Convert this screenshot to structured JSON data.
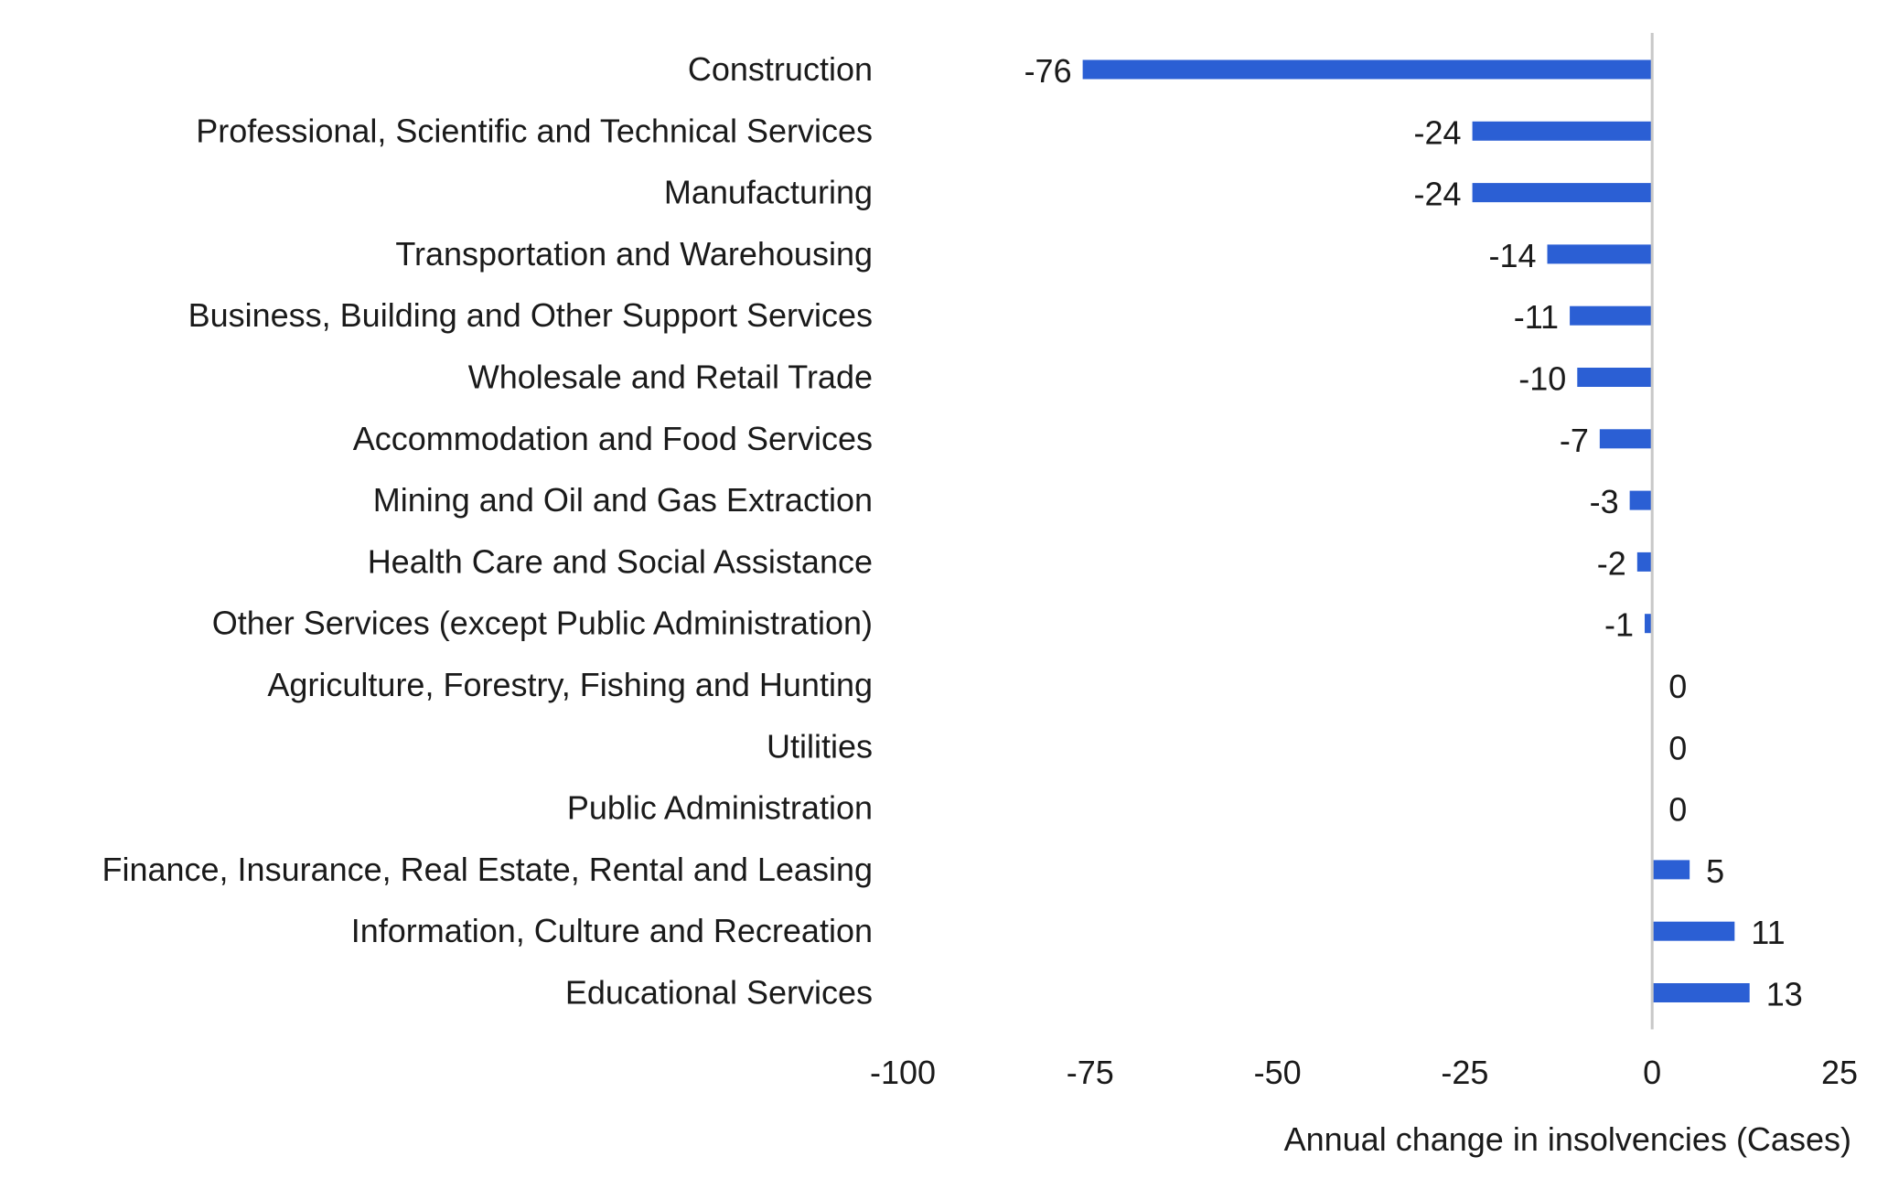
{
  "chart_data": {
    "type": "bar",
    "orientation": "horizontal",
    "categories": [
      "Construction",
      "Professional, Scientific and Technical Services",
      "Manufacturing",
      "Transportation and Warehousing",
      "Business, Building and Other Support Services",
      "Wholesale and Retail Trade",
      "Accommodation and Food Services",
      "Mining and Oil and Gas Extraction",
      "Health Care and Social Assistance",
      "Other Services (except Public Administration)",
      "Agriculture, Forestry, Fishing and Hunting",
      "Utilities",
      "Public Administration",
      "Finance, Insurance, Real Estate, Rental and Leasing",
      "Information, Culture and Recreation",
      "Educational Services"
    ],
    "values": [
      -76,
      -24,
      -24,
      -14,
      -11,
      -10,
      -7,
      -3,
      -2,
      -1,
      0,
      0,
      0,
      5,
      11,
      13
    ],
    "data_labels": [
      "-76",
      "-24",
      "-24",
      "-14",
      "-11",
      "-10",
      "-7",
      "-3",
      "-2",
      "-1",
      "0",
      "0",
      "0",
      "5",
      "11",
      "13"
    ],
    "xlabel": "Annual change in insolvencies (Cases)",
    "ylabel": "",
    "title": "",
    "xlim": [
      -100,
      25
    ],
    "xticks": [
      -100,
      -75,
      -50,
      -25,
      0,
      25
    ],
    "xtick_labels": [
      "-100",
      "-75",
      "-50",
      "-25",
      "0",
      "25"
    ],
    "grid": false,
    "legend": "none",
    "bar_color": "#2b5fd4"
  }
}
